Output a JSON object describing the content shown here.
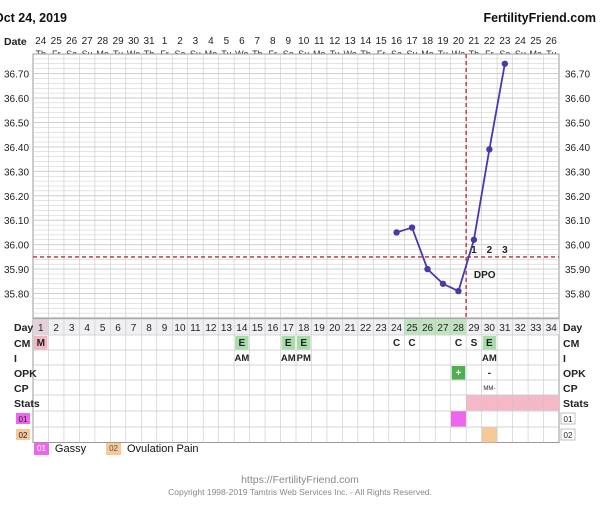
{
  "header": {
    "date_title": "Oct 24, 2019",
    "site": "FertilityFriend.com"
  },
  "row_labels": {
    "date": "Date",
    "day": "Day",
    "cm": "CM",
    "i": "I",
    "opk": "OPK",
    "cp": "CP",
    "stats": "Stats",
    "custom1": "01",
    "custom2": "02"
  },
  "dates": [
    "24",
    "25",
    "26",
    "27",
    "28",
    "29",
    "30",
    "31",
    "1",
    "2",
    "3",
    "4",
    "5",
    "6",
    "7",
    "8",
    "9",
    "10",
    "11",
    "12",
    "13",
    "14",
    "15",
    "16",
    "17",
    "18",
    "19",
    "20",
    "21",
    "22",
    "23",
    "24",
    "25",
    "26"
  ],
  "weekdays": [
    "Th",
    "Fr",
    "Sa",
    "Su",
    "Mo",
    "Tu",
    "We",
    "Th",
    "Fr",
    "Sa",
    "Su",
    "Mo",
    "Tu",
    "We",
    "Th",
    "Fr",
    "Sa",
    "Su",
    "Mo",
    "Tu",
    "We",
    "Th",
    "Fr",
    "Sa",
    "Su",
    "Mo",
    "Tu",
    "We",
    "Th",
    "Fr",
    "Sa",
    "Su",
    "Mo",
    "Tu"
  ],
  "cycle_days": [
    "1",
    "2",
    "3",
    "4",
    "5",
    "6",
    "7",
    "8",
    "9",
    "10",
    "11",
    "12",
    "13",
    "14",
    "15",
    "16",
    "17",
    "18",
    "19",
    "20",
    "21",
    "22",
    "23",
    "24",
    "25",
    "26",
    "27",
    "28",
    "29",
    "30",
    "31",
    "32",
    "33",
    "34"
  ],
  "cm_marks": [
    {
      "day": 1,
      "label": "M",
      "color": "#f2b8c2"
    },
    {
      "day": 24,
      "label": "C",
      "color": ""
    },
    {
      "day": 25,
      "label": "C",
      "color": ""
    },
    {
      "day": 28,
      "label": "C",
      "color": ""
    },
    {
      "day": 29,
      "label": "S",
      "color": ""
    },
    {
      "day": 14,
      "label": "E",
      "color": "#a8dca8"
    },
    {
      "day": 17,
      "label": "E",
      "color": "#a8dca8"
    },
    {
      "day": 18,
      "label": "E",
      "color": "#a8dca8"
    },
    {
      "day": 30,
      "label": "E",
      "color": "#a8dca8"
    }
  ],
  "i_marks": [
    {
      "day": 14,
      "label": "AM"
    },
    {
      "day": 17,
      "label": "AM"
    },
    {
      "day": 18,
      "label": "PM"
    },
    {
      "day": 30,
      "label": "AM"
    }
  ],
  "opk_marks": [
    {
      "day": 28,
      "label": "+",
      "color": "#4caf50"
    },
    {
      "day": 30,
      "label": "-",
      "color": ""
    }
  ],
  "cp_marks": [
    {
      "day": 30,
      "label": "MM-"
    }
  ],
  "legend": [
    {
      "code": "01",
      "label": "Gassy",
      "color": "#ee66ee"
    },
    {
      "code": "02",
      "label": "Ovulation Pain",
      "color": "#f7c898"
    }
  ],
  "footer": {
    "url": "https://FertilityFriend.com",
    "copyright": "Copyright 1998-2019 Tamtris Web Services Inc. - All Rights Reserved."
  },
  "chart_data": {
    "type": "line",
    "title": "",
    "xlabel": "Day",
    "ylabel": "",
    "x_range": [
      1,
      34
    ],
    "ylim": [
      35.7,
      36.78
    ],
    "y_ticks": [
      35.8,
      35.9,
      36.0,
      36.1,
      36.2,
      36.3,
      36.4,
      36.5,
      36.6,
      36.7
    ],
    "coverline": 35.95,
    "ovulation_day": 28,
    "series": [
      {
        "values": [
          {
            "day": 24,
            "temp": 36.05
          },
          {
            "day": 25,
            "temp": 36.07
          },
          {
            "day": 26,
            "temp": 35.9
          },
          {
            "day": 27,
            "temp": 35.84
          },
          {
            "day": 28,
            "temp": 35.81
          },
          {
            "day": 29,
            "temp": 36.02
          },
          {
            "day": 30,
            "temp": 36.39
          },
          {
            "day": 31,
            "temp": 36.74
          }
        ]
      }
    ],
    "dpo_label": "DPO",
    "dpo_numbers": [
      {
        "day": 29,
        "label": "1"
      },
      {
        "day": 30,
        "label": "2"
      },
      {
        "day": 31,
        "label": "3"
      }
    ],
    "colors": {
      "line": "#4a3aa8",
      "grid": "#c8c8c8",
      "dashed": "#c94a4a",
      "day_row": "#f0eff4",
      "stats_luteal": "#f4b8c8",
      "gassy": "#ee66ee",
      "ovulation_pain": "#f7c898"
    }
  }
}
